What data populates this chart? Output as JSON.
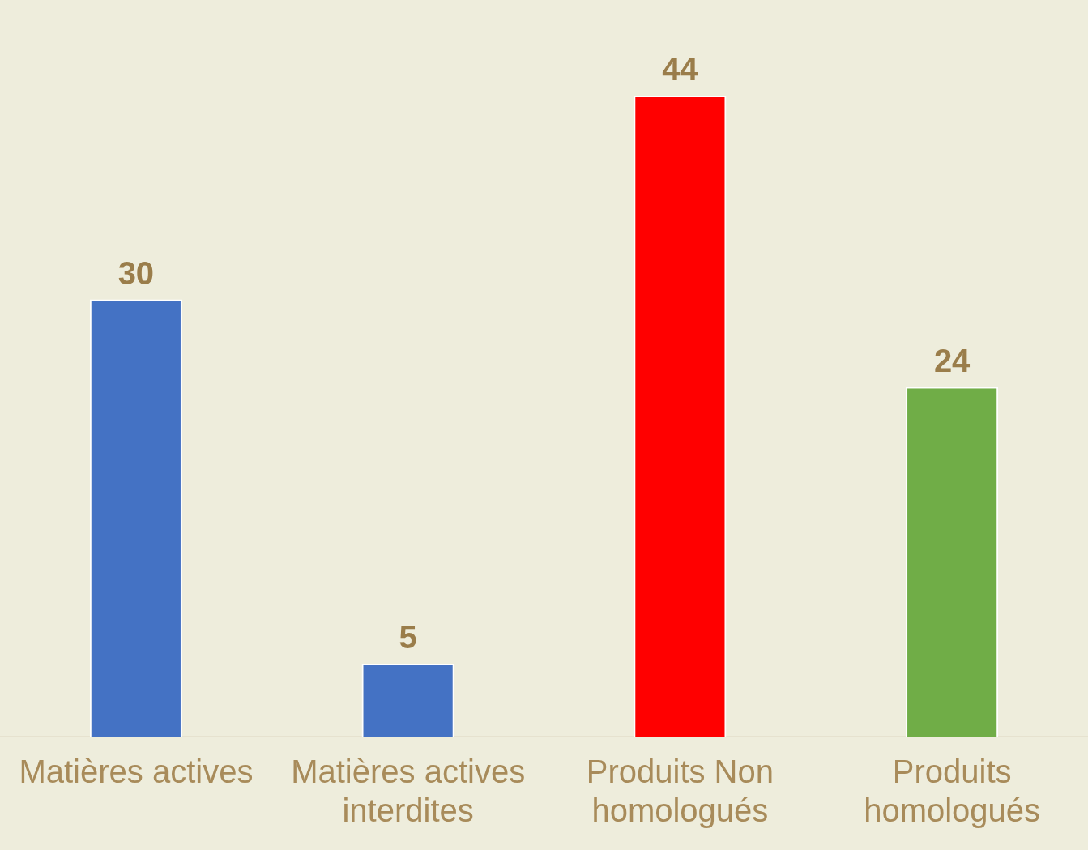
{
  "chart_data": {
    "type": "bar",
    "categories": [
      "Matières actives",
      "Matières actives interdites",
      "Produits Non homologués",
      "Produits homologués"
    ],
    "values": [
      30,
      5,
      44,
      24
    ],
    "colors": [
      "#4472c4",
      "#4472c4",
      "#ff0000",
      "#70ad47"
    ],
    "data_labels": true,
    "grid": false,
    "legend": false
  }
}
